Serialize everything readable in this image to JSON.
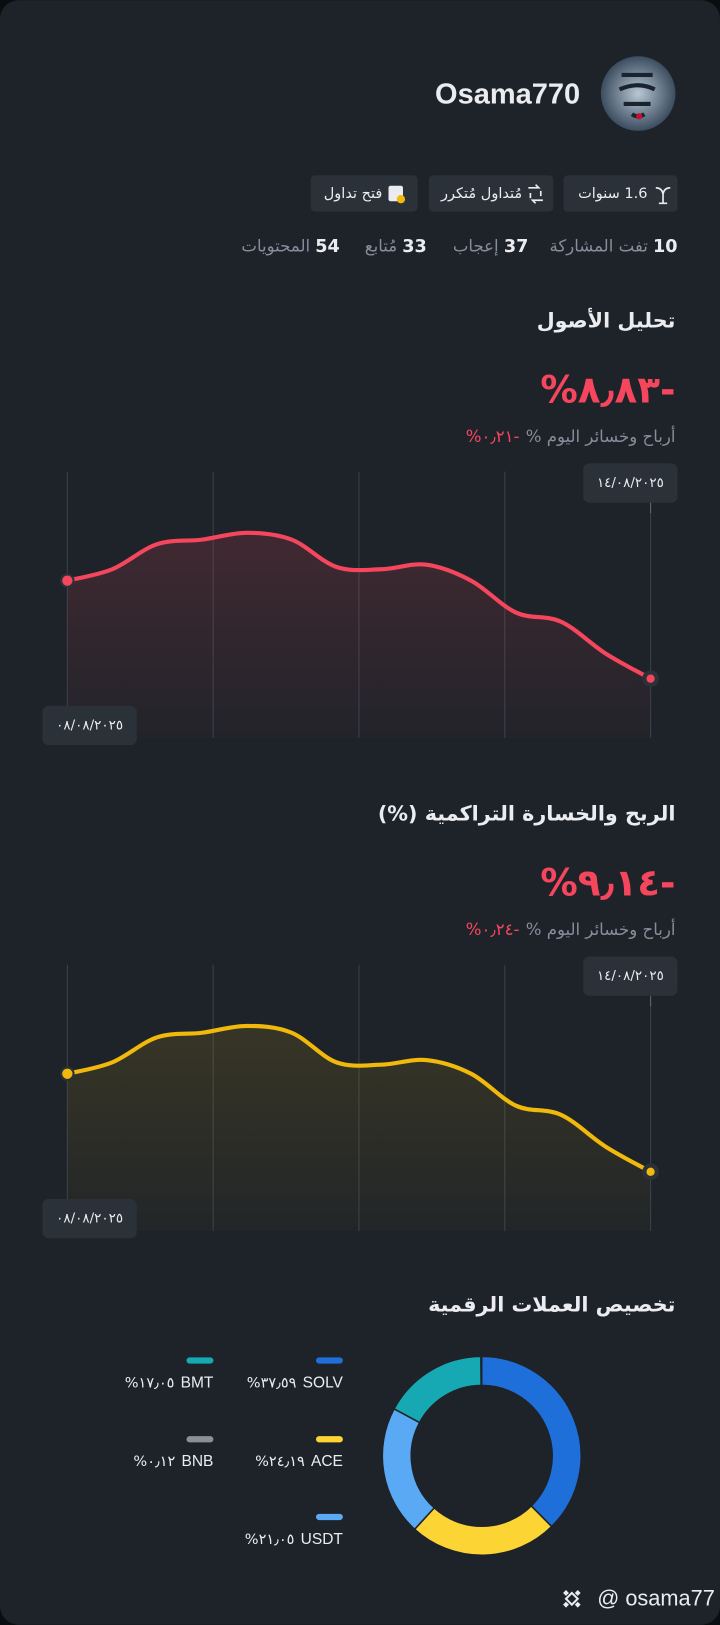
{
  "profile": {
    "name": "Osama770",
    "badges": [
      "1.6 سنوات",
      "مُتداول مُتكرر",
      "فتح تداول"
    ],
    "stats": [
      {
        "value": 10,
        "label": "تفت المشاركة"
      },
      {
        "value": 37,
        "label": "إعجاب"
      },
      {
        "value": 33,
        "label": "مُتابع"
      },
      {
        "value": 54,
        "label": "المحتويات"
      }
    ]
  },
  "chart_data": [
    {
      "type": "line",
      "title": "تحليل الأصول",
      "headline": "%٨٫٨٣-",
      "subtitle": "أرباح وخسائر اليوم %",
      "subtitle_value": "%٠٫٢١-",
      "categories": [
        "٠٨/٠٨/٢٠٢٥",
        null,
        null,
        null,
        null,
        null,
        null,
        null,
        null,
        null,
        null,
        null,
        null,
        "١٤/٠٨/٢٠٢٥"
      ],
      "values": [
        59,
        64,
        75,
        77,
        80,
        77,
        65,
        64,
        66,
        59,
        45,
        41,
        27,
        16
      ],
      "ylim": [
        0,
        100
      ],
      "color": "#f6465d"
    },
    {
      "type": "line",
      "title": "الربح والخسارة التراكمية (%)",
      "headline": "%٩٫١٤-",
      "subtitle": "أرباح وخسائر اليوم %",
      "subtitle_value": "%٠٫٢٤-",
      "categories": [
        "٠٨/٠٨/٢٠٢٥",
        null,
        null,
        null,
        null,
        null,
        null,
        null,
        null,
        null,
        null,
        null,
        null,
        "١٤/٠٨/٢٠٢٥"
      ],
      "values": [
        59,
        64,
        75,
        77,
        80,
        77,
        64,
        63,
        65,
        59,
        45,
        41,
        27,
        16
      ],
      "ylim": [
        0,
        100
      ],
      "color": "#f0b90b"
    },
    {
      "type": "donut",
      "title": "تخصيص العملات الرقمية",
      "categories": [
        "SOLV",
        "ACE",
        "USDT",
        "BMT",
        "BNB"
      ],
      "values": [
        37.59,
        24.19,
        21.05,
        17.05,
        0.12
      ],
      "value_labels": [
        "%٣٧٫٥٩",
        "%٢٤٫١٩",
        "%٢١٫٠٥",
        "%١٧٫٠٥",
        "%٠٫١٢"
      ],
      "colors": [
        "#1e6fd9",
        "#fcd535",
        "#5aa9f5",
        "#16a9b4",
        "#8a8f98"
      ]
    }
  ],
  "footer": "@ osama77"
}
